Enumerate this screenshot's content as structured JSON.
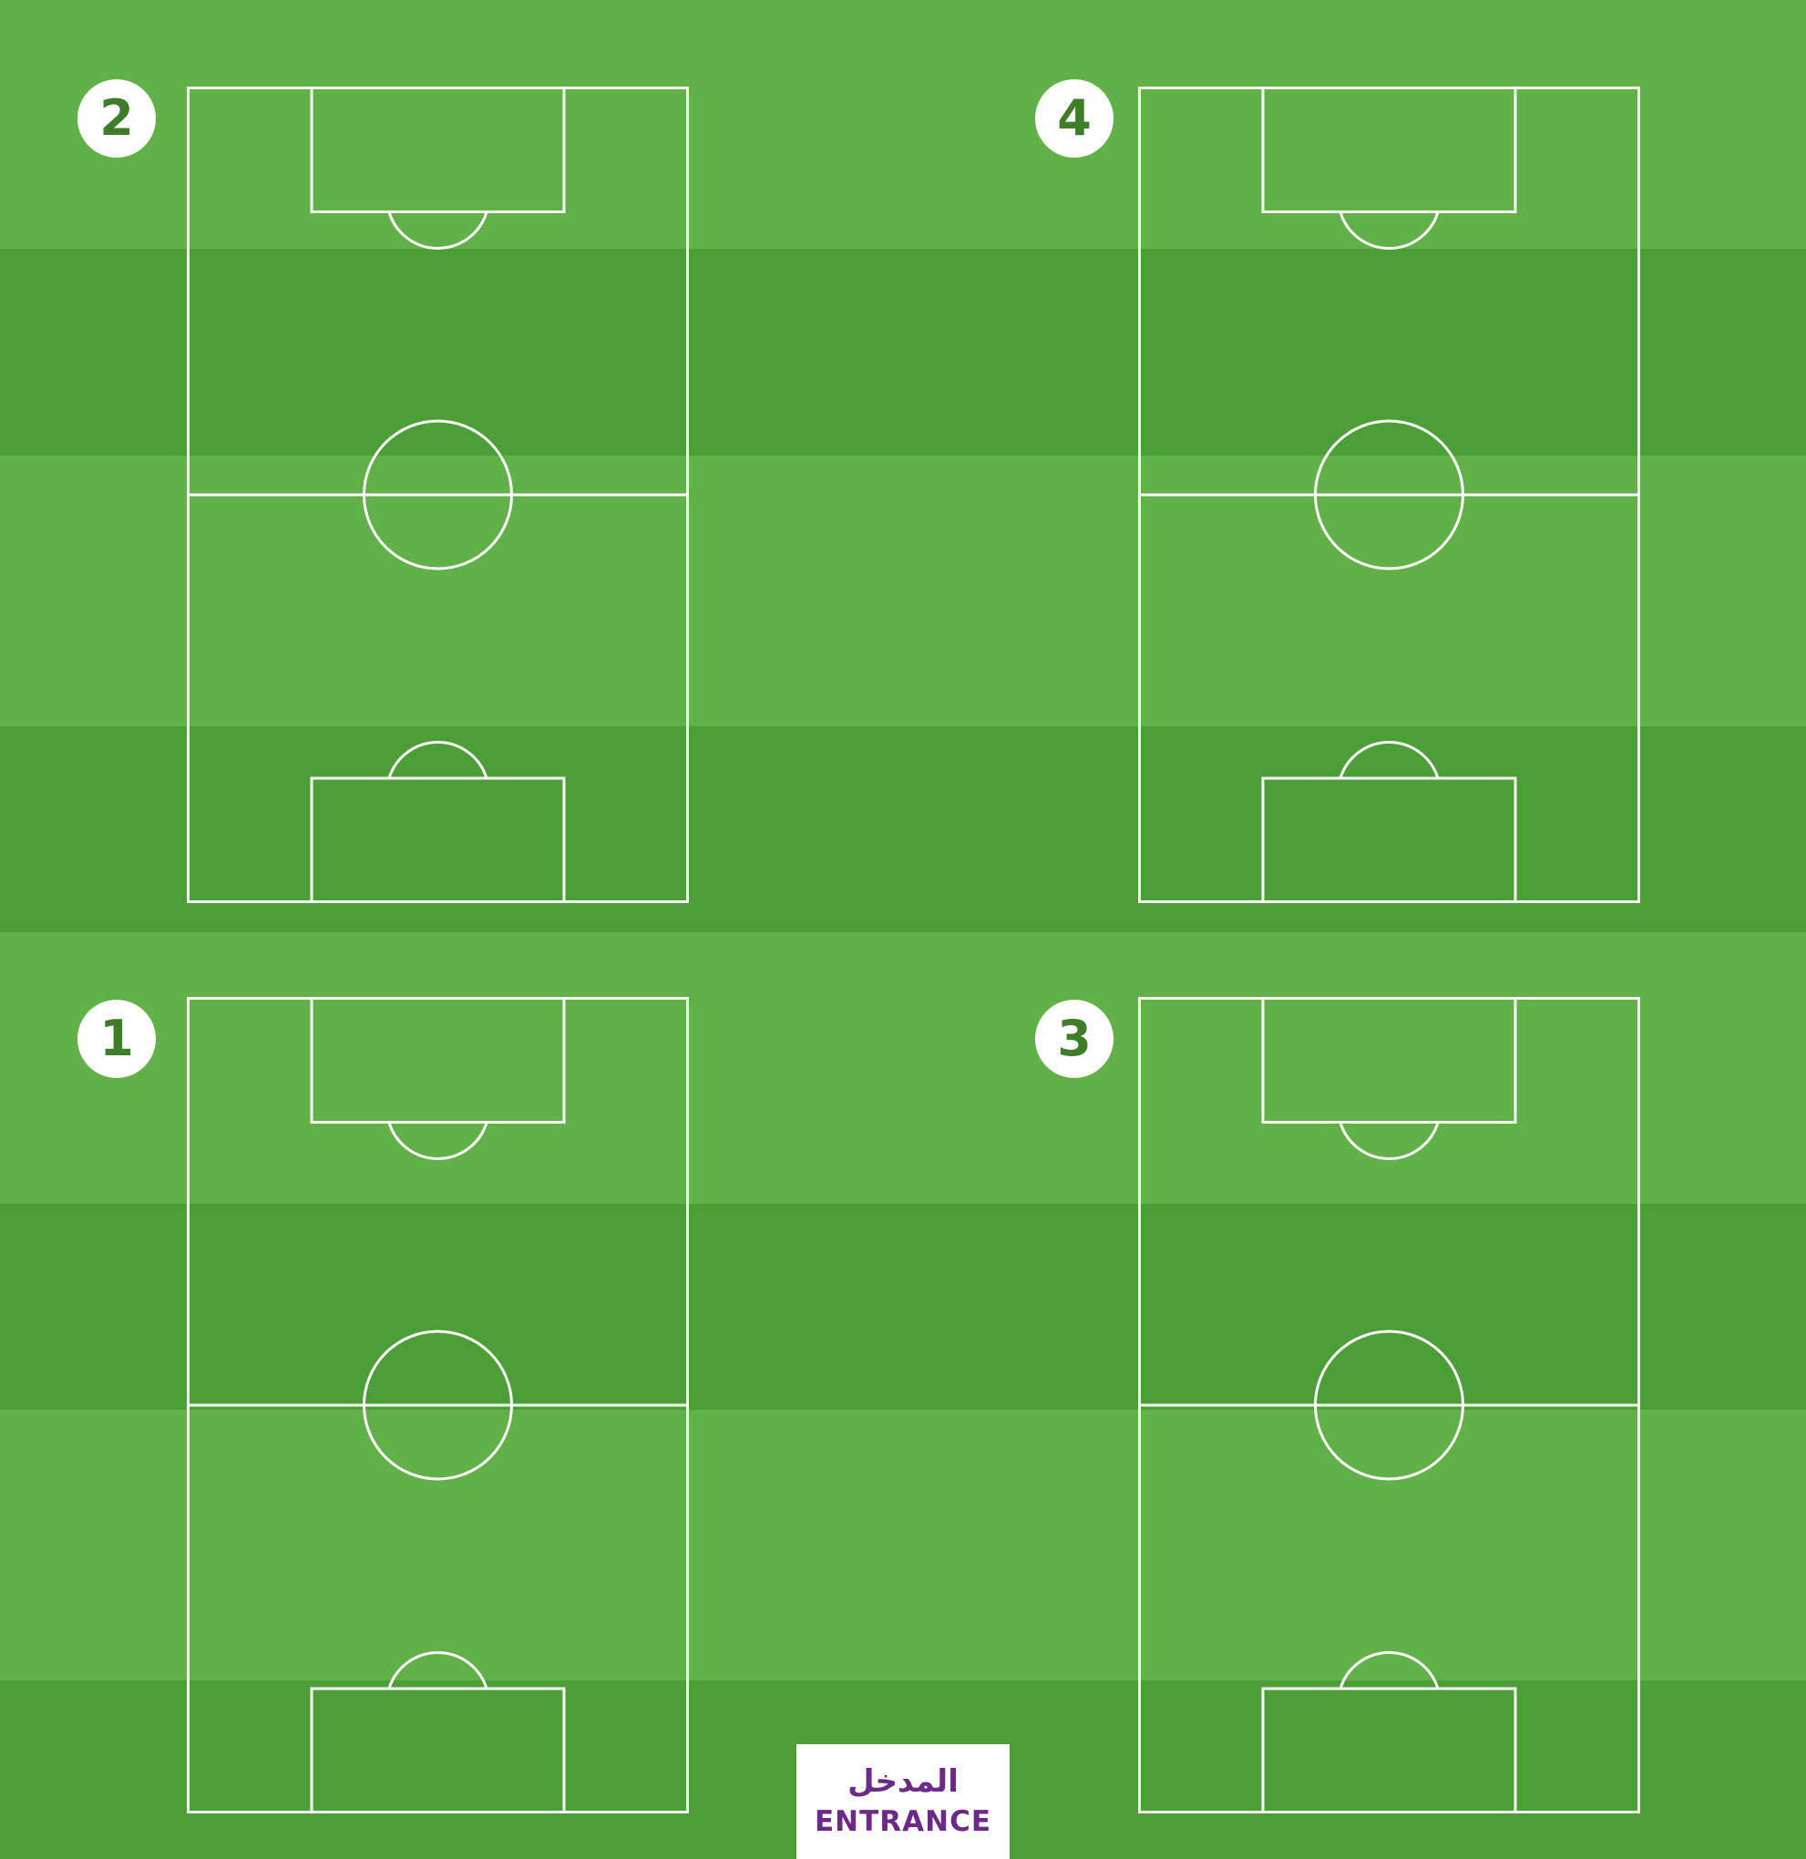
{
  "colors": {
    "grass_light": "#62b148",
    "grass_dark": "#4c9e36",
    "lines": "#ffffff",
    "badge_text": "#3f7d2a",
    "entrance_text": "#6a2a86"
  },
  "pitches": [
    {
      "id": "pitch-2",
      "number": "2"
    },
    {
      "id": "pitch-4",
      "number": "4"
    },
    {
      "id": "pitch-1",
      "number": "1"
    },
    {
      "id": "pitch-3",
      "number": "3"
    }
  ],
  "entrance": {
    "label_ar": "المدخل",
    "label_en": "ENTRANCE"
  }
}
